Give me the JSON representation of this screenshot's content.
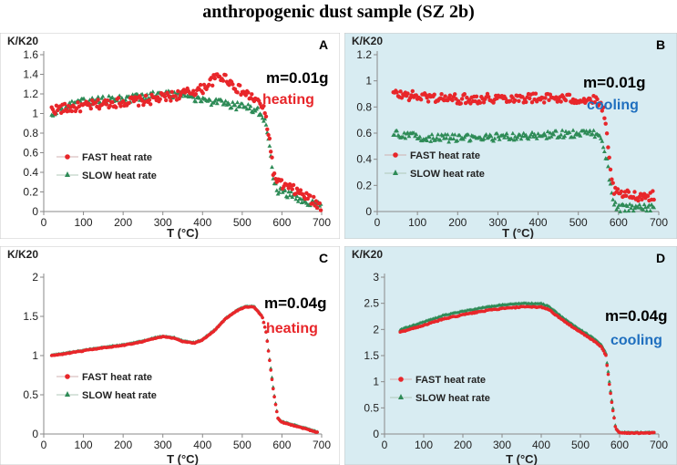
{
  "figure_title": "anthropogenic dust sample (SZ 2b)",
  "colors": {
    "fast": "#e8262a",
    "slow": "#2e8b57",
    "panel_bg_blue": "#d8ecf2",
    "heating": "#e8262a",
    "cooling": "#1f6fbf"
  },
  "chart_data": [
    {
      "type": "scatter",
      "panel_letter": "A",
      "mass_label": "m=0.01g",
      "mode_label": "heating",
      "ylabel": "K/K20",
      "xlabel": "T (°C)",
      "xlim": [
        0,
        700
      ],
      "xticks": [
        0,
        100,
        200,
        300,
        400,
        500,
        600,
        700
      ],
      "ylim": [
        0,
        1.6
      ],
      "yticks": [
        0,
        0.2,
        0.4,
        0.6,
        0.8,
        1,
        1.2,
        1.4,
        1.6
      ],
      "ytick_labels": [
        "0",
        "0.2",
        "0.4",
        "0.6",
        "0.8",
        "1",
        "1.2",
        "1.4",
        "1.6"
      ],
      "legend": [
        "FAST heat rate",
        "SLOW heat rate"
      ],
      "series": [
        {
          "name": "FAST heat rate",
          "noise": 0.05,
          "x": [
            20,
            50,
            100,
            150,
            200,
            250,
            300,
            350,
            400,
            420,
            440,
            460,
            480,
            500,
            530,
            550,
            560,
            570,
            580,
            600,
            620,
            650,
            680,
            700
          ],
          "y": [
            1.04,
            1.05,
            1.07,
            1.1,
            1.12,
            1.13,
            1.16,
            1.2,
            1.25,
            1.32,
            1.38,
            1.36,
            1.28,
            1.22,
            1.15,
            1.08,
            0.95,
            0.7,
            0.35,
            0.27,
            0.24,
            0.18,
            0.1,
            0.05
          ]
        },
        {
          "name": "SLOW heat rate",
          "noise": 0.04,
          "x": [
            20,
            50,
            100,
            150,
            200,
            250,
            300,
            350,
            400,
            450,
            500,
            530,
            550,
            560,
            570,
            580,
            590,
            600,
            620,
            650,
            680,
            700
          ],
          "y": [
            1.0,
            1.07,
            1.12,
            1.14,
            1.15,
            1.17,
            1.2,
            1.2,
            1.14,
            1.1,
            1.07,
            1.05,
            1.0,
            0.9,
            0.6,
            0.3,
            0.22,
            0.2,
            0.17,
            0.12,
            0.08,
            0.05
          ]
        }
      ]
    },
    {
      "type": "scatter",
      "panel_letter": "B",
      "mass_label": "m=0.01g",
      "mode_label": "cooling",
      "ylabel": "K/K20",
      "xlabel": "T (°C)",
      "xlim": [
        0,
        700
      ],
      "xticks": [
        0,
        100,
        200,
        300,
        400,
        500,
        600,
        700
      ],
      "ylim": [
        0,
        1.2
      ],
      "yticks": [
        0,
        0.2,
        0.4,
        0.6,
        0.8,
        1,
        1.2
      ],
      "ytick_labels": [
        "0",
        "0.2",
        "0.4",
        "0.6",
        "0.8",
        "1",
        "1.2"
      ],
      "legend": [
        "FAST heat rate",
        "SLOW heat rate"
      ],
      "series": [
        {
          "name": "FAST heat rate",
          "noise": 0.05,
          "x": [
            40,
            100,
            200,
            300,
            400,
            500,
            540,
            560,
            570,
            580,
            590,
            600,
            650,
            690
          ],
          "y": [
            0.9,
            0.88,
            0.86,
            0.87,
            0.87,
            0.86,
            0.85,
            0.8,
            0.6,
            0.3,
            0.15,
            0.13,
            0.12,
            0.12
          ]
        },
        {
          "name": "SLOW heat rate",
          "noise": 0.04,
          "x": [
            40,
            100,
            200,
            300,
            400,
            500,
            540,
            560,
            570,
            580,
            590,
            600,
            650,
            690
          ],
          "y": [
            0.6,
            0.57,
            0.56,
            0.57,
            0.58,
            0.6,
            0.6,
            0.55,
            0.4,
            0.2,
            0.05,
            0.03,
            0.03,
            0.03
          ]
        }
      ]
    },
    {
      "type": "scatter",
      "panel_letter": "C",
      "mass_label": "m=0.04g",
      "mode_label": "heating",
      "ylabel": "K/K20",
      "xlabel": "T (°C)",
      "xlim": [
        0,
        700
      ],
      "xticks": [
        0,
        100,
        200,
        300,
        400,
        500,
        600,
        700
      ],
      "ylim": [
        0,
        2
      ],
      "yticks": [
        0,
        0.5,
        1,
        1.5,
        2
      ],
      "ytick_labels": [
        "0",
        "0.5",
        "1",
        "1.5",
        "2"
      ],
      "legend": [
        "FAST heat rate",
        "SLOW heat rate"
      ],
      "series": [
        {
          "name": "FAST heat rate",
          "noise": 0.004,
          "x": [
            20,
            50,
            100,
            150,
            200,
            250,
            280,
            300,
            330,
            350,
            380,
            400,
            430,
            460,
            490,
            510,
            530,
            550,
            560,
            570,
            580,
            590,
            600,
            650,
            690
          ],
          "y": [
            1.0,
            1.02,
            1.06,
            1.1,
            1.13,
            1.18,
            1.22,
            1.24,
            1.22,
            1.18,
            1.16,
            1.2,
            1.32,
            1.48,
            1.58,
            1.62,
            1.62,
            1.5,
            1.3,
            0.9,
            0.5,
            0.2,
            0.15,
            0.08,
            0.02
          ]
        },
        {
          "name": "SLOW heat rate",
          "noise": 0.004,
          "x": [
            20,
            50,
            100,
            150,
            200,
            250,
            280,
            300,
            330,
            350,
            380,
            400,
            430,
            460,
            490,
            510,
            530,
            550,
            560,
            570,
            580,
            590,
            600,
            650,
            690
          ],
          "y": [
            1.01,
            1.03,
            1.07,
            1.11,
            1.14,
            1.19,
            1.23,
            1.25,
            1.23,
            1.19,
            1.17,
            1.21,
            1.33,
            1.49,
            1.59,
            1.63,
            1.63,
            1.51,
            1.31,
            0.92,
            0.52,
            0.21,
            0.16,
            0.09,
            0.03
          ]
        }
      ]
    },
    {
      "type": "scatter",
      "panel_letter": "D",
      "mass_label": "m=0.04g",
      "mode_label": "cooling",
      "ylabel": "K/K20",
      "xlabel": "T (°C)",
      "xlim": [
        0,
        700
      ],
      "xticks": [
        0,
        100,
        200,
        300,
        400,
        500,
        600,
        700
      ],
      "ylim": [
        0,
        3
      ],
      "yticks": [
        0,
        0.5,
        1,
        1.5,
        2,
        2.5,
        3
      ],
      "ytick_labels": [
        "0",
        "0.5",
        "1",
        "1.5",
        "2",
        "2.5",
        "3"
      ],
      "legend": [
        "FAST heat rate",
        "SLOW heat rate"
      ],
      "series": [
        {
          "name": "FAST heat rate",
          "noise": 0.005,
          "x": [
            40,
            100,
            150,
            200,
            250,
            300,
            350,
            400,
            420,
            450,
            480,
            500,
            520,
            540,
            555,
            565,
            570,
            580,
            590,
            600,
            650,
            690
          ],
          "y": [
            1.95,
            2.08,
            2.2,
            2.28,
            2.35,
            2.4,
            2.43,
            2.43,
            2.38,
            2.2,
            2.05,
            1.95,
            1.85,
            1.75,
            1.65,
            1.5,
            1.2,
            0.6,
            0.1,
            0.02,
            0.02,
            0.02
          ]
        },
        {
          "name": "SLOW heat rate",
          "noise": 0.005,
          "x": [
            40,
            100,
            150,
            200,
            250,
            300,
            350,
            400,
            420,
            450,
            480,
            500,
            520,
            540,
            555,
            565,
            570,
            580,
            590,
            600,
            650,
            690
          ],
          "y": [
            2.0,
            2.15,
            2.27,
            2.35,
            2.42,
            2.47,
            2.5,
            2.5,
            2.44,
            2.26,
            2.1,
            2.0,
            1.9,
            1.8,
            1.7,
            1.55,
            1.25,
            0.65,
            0.12,
            0.03,
            0.03,
            0.03
          ]
        }
      ]
    }
  ]
}
